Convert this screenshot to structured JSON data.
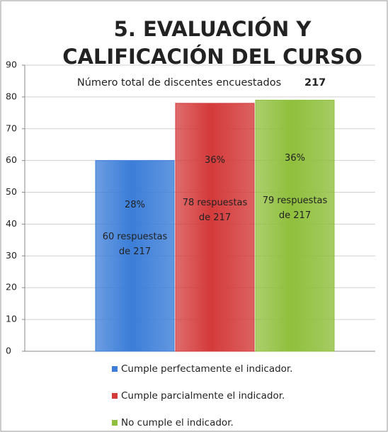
{
  "chart_data": {
    "type": "bar",
    "title": [
      "5. EVALUACIÓN Y",
      "CALIFICACIÓN DEL CURSO"
    ],
    "subtitle": "Número total de discentes encuestados",
    "total": 217,
    "ylim": [
      0,
      90
    ],
    "yticks": [
      0,
      10,
      20,
      30,
      40,
      50,
      60,
      70,
      80,
      90
    ],
    "grid": true,
    "legend": "bottom",
    "series": [
      {
        "name": "Cumple perfectamente el indicador.",
        "color": "#3b7dd8",
        "values": [
          60
        ],
        "value_labels": [
          "60 respuestas de 217"
        ],
        "share_labels": [
          "28%"
        ]
      },
      {
        "name": "Cumple parcialmente el indicador.",
        "color": "#d43a3a",
        "values": [
          78
        ],
        "value_labels": [
          "78 respuestas de 217"
        ],
        "share_labels": [
          "36%"
        ]
      },
      {
        "name": "No cumple el indicador.",
        "color": "#8fbf3c",
        "values": [
          79
        ],
        "value_labels": [
          "79 respuestas de 217"
        ],
        "share_labels": [
          "36%"
        ]
      }
    ]
  }
}
